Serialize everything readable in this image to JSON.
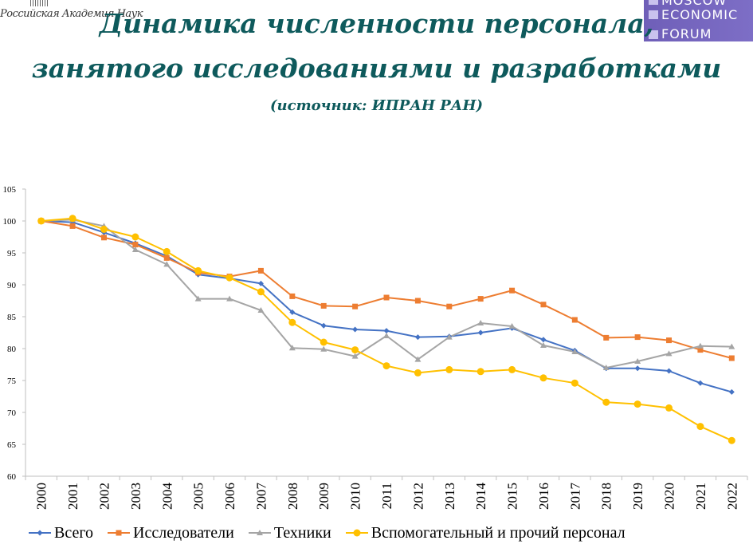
{
  "header": {
    "left_logo_text": "Российская Академия Наук",
    "right_logo_lines": [
      "MOSCOW",
      "ECONOMIC",
      "FORUM"
    ],
    "title_line1": "Динамика численности персонала,",
    "title_line2": "занятого исследованиями и разработками",
    "subtitle": "(источник: ИПРАН РАН)"
  },
  "colors": {
    "title": "#0e5a5c",
    "logo_bg": "#6f5fb8"
  },
  "chart_data": {
    "type": "line",
    "x": [
      "2000",
      "2001",
      "2002",
      "2003",
      "2004",
      "2005",
      "2006",
      "2007",
      "2008",
      "2009",
      "2010",
      "2011",
      "2012",
      "2013",
      "2014",
      "2015",
      "2016",
      "2017",
      "2018",
      "2019",
      "2020",
      "2021",
      "2022"
    ],
    "ylim": [
      60,
      105
    ],
    "yticks": [
      60,
      65,
      70,
      75,
      80,
      85,
      90,
      95,
      100,
      105
    ],
    "grid": false,
    "legend_position": "bottom",
    "series": [
      {
        "name": "Всего",
        "color": "#4472c4",
        "marker": "diamond",
        "values": [
          100,
          99.8,
          98.2,
          96.5,
          94.5,
          91.6,
          91.0,
          90.2,
          85.7,
          83.6,
          83.0,
          82.8,
          81.8,
          81.9,
          82.5,
          83.2,
          81.4,
          79.7,
          76.9,
          76.9,
          76.5,
          74.6,
          73.2
        ]
      },
      {
        "name": "Исследователи",
        "color": "#ed7d31",
        "marker": "square",
        "values": [
          100,
          99.2,
          97.4,
          96.3,
          94.2,
          91.9,
          91.3,
          92.2,
          88.2,
          86.7,
          86.6,
          88.0,
          87.5,
          86.6,
          87.8,
          89.1,
          86.9,
          84.5,
          81.7,
          81.8,
          81.3,
          79.8,
          78.5
        ]
      },
      {
        "name": "Техники",
        "color": "#a5a5a5",
        "marker": "triangle",
        "values": [
          100,
          100.2,
          99.2,
          95.5,
          93.2,
          87.8,
          87.8,
          86.0,
          80.1,
          79.9,
          78.8,
          82.0,
          78.3,
          81.8,
          84.0,
          83.5,
          80.5,
          79.5,
          77.0,
          78.0,
          79.2,
          80.4,
          80.3
        ]
      },
      {
        "name": "Вспомогательный и прочий персонал",
        "color": "#ffc000",
        "marker": "circle",
        "values": [
          100,
          100.4,
          98.7,
          97.5,
          95.2,
          92.2,
          91.1,
          88.9,
          84.1,
          81.0,
          79.8,
          77.3,
          76.2,
          76.7,
          76.4,
          76.7,
          75.4,
          74.6,
          71.6,
          71.3,
          70.7,
          67.8,
          65.6
        ]
      }
    ]
  }
}
